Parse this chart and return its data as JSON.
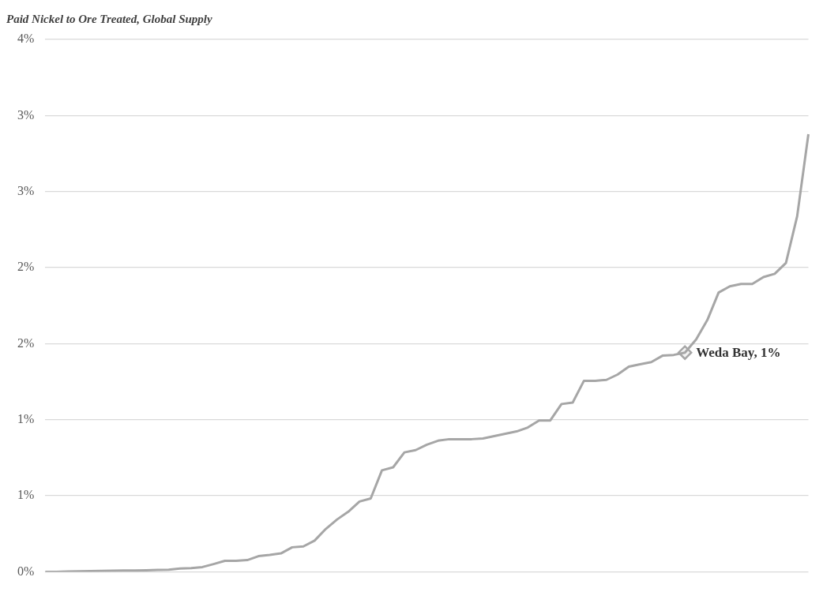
{
  "chart_data": {
    "type": "line",
    "title": "Paid Nickel to Ore Treated, Global Supply",
    "categories": [
      null,
      null,
      null,
      null,
      null,
      null,
      null,
      null,
      null,
      null,
      null,
      null,
      null,
      null,
      null,
      null,
      null,
      null,
      null,
      null,
      null,
      null,
      null,
      null,
      null,
      null,
      null,
      null,
      null,
      null,
      null,
      null,
      null,
      null,
      null,
      null,
      null,
      null,
      null,
      null,
      null,
      null,
      null,
      null,
      null,
      null,
      null,
      null,
      null,
      null,
      null,
      null,
      null,
      null,
      null,
      null,
      null,
      null,
      null,
      null,
      null,
      null,
      null,
      null,
      null,
      null,
      null,
      null,
      null
    ],
    "series": [
      {
        "color": "#a6a6a6",
        "values": [
          0,
          0,
          0.002,
          0.003,
          0.005,
          0.006,
          0.007,
          0.008,
          0.009,
          0.01,
          0.012,
          0.014,
          0.021,
          0.024,
          0.031,
          0.051,
          0.072,
          0.072,
          0.077,
          0.103,
          0.111,
          0.121,
          0.161,
          0.167,
          0.205,
          0.282,
          0.344,
          0.395,
          0.462,
          0.482,
          0.667,
          0.687,
          0.785,
          0.8,
          0.836,
          0.862,
          0.872,
          0.872,
          0.872,
          0.877,
          0.892,
          0.908,
          0.923,
          0.949,
          0.995,
          0.995,
          1.103,
          1.113,
          1.256,
          1.256,
          1.262,
          1.297,
          1.349,
          1.364,
          1.379,
          1.421,
          1.426,
          1.441,
          1.528,
          1.656,
          1.836,
          1.877,
          1.892,
          1.892,
          1.938,
          1.959,
          2.031,
          2.338,
          2.877
        ]
      },
      {
        "type": "scatter",
        "marker": "diamond",
        "color": "#a6a6a6",
        "values": [
          null,
          null,
          null,
          null,
          null,
          null,
          null,
          null,
          null,
          null,
          null,
          null,
          null,
          null,
          null,
          null,
          null,
          null,
          null,
          null,
          null,
          null,
          null,
          null,
          null,
          null,
          null,
          null,
          null,
          null,
          null,
          null,
          null,
          null,
          null,
          null,
          null,
          null,
          null,
          null,
          null,
          null,
          null,
          null,
          null,
          null,
          null,
          null,
          null,
          null,
          null,
          null,
          null,
          null,
          null,
          null,
          null,
          1.441,
          null,
          null,
          null,
          null,
          null,
          null,
          null,
          null,
          null,
          null,
          null
        ]
      }
    ],
    "ylim": [
      0,
      3.5
    ],
    "yticks": [
      {
        "value": 0,
        "label": "0%"
      },
      {
        "value": 0.5,
        "label": "1%"
      },
      {
        "value": 1,
        "label": "1%"
      },
      {
        "value": 1.5,
        "label": "2%"
      },
      {
        "value": 2,
        "label": "2%"
      },
      {
        "value": 2.5,
        "label": "3%"
      },
      {
        "value": 3,
        "label": "3%"
      },
      {
        "value": 3.5,
        "label": "4%"
      }
    ],
    "tick_labels": "y",
    "grid": "y",
    "legend": false,
    "marker": "none",
    "line_style": "solid",
    "annotations": [
      "Weda Bay, 1%"
    ]
  }
}
